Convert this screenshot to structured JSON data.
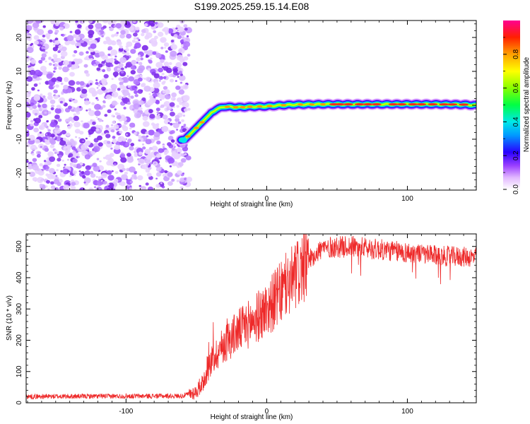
{
  "title": "S199.2025.259.15.14.E08",
  "chart_data": [
    {
      "type": "heatmap",
      "name": "spectrogram",
      "xlabel": "Height of straight line (km)",
      "ylabel": "Frequency (Hz)",
      "xlim": [
        -171,
        149
      ],
      "ylim": [
        -25,
        25
      ],
      "xticks": [
        -100,
        0,
        100
      ],
      "yticks": [
        -20,
        -10,
        0,
        10,
        20
      ],
      "noise_region_x_max": -58,
      "ridge": {
        "x": [
          -61,
          -58,
          -52,
          -46,
          -40,
          -36,
          -30,
          -20,
          -10,
          0,
          10,
          20,
          40,
          60,
          80,
          100,
          120,
          140,
          149
        ],
        "y": [
          -10.2,
          -10,
          -7.5,
          -5,
          -2.5,
          -1.2,
          -0.4,
          -0.6,
          -0.4,
          -0.3,
          0,
          0.2,
          0.3,
          0.3,
          0.3,
          0.3,
          0.3,
          0.2,
          0
        ]
      },
      "colorbar": {
        "label": "Normalized spectral amplitude",
        "ticks": [
          0.0,
          0.2,
          0.4,
          0.6,
          0.8
        ],
        "range": [
          0,
          1
        ]
      }
    },
    {
      "type": "line",
      "name": "snr",
      "xlabel": "Height of straight line (km)",
      "ylabel": "SNR (10 * v/v)",
      "xlim": [
        -171,
        149
      ],
      "ylim": [
        0,
        540
      ],
      "xticks": [
        -100,
        0,
        100
      ],
      "yticks": [
        0,
        100,
        200,
        300,
        400,
        500
      ],
      "series": [
        {
          "name": "SNR",
          "color": "#ee2a2a",
          "trend": {
            "x": [
              -171,
              -60,
              -50,
              -45,
              -40,
              -30,
              -20,
              -10,
              0,
              10,
              20,
              30,
              40,
              60,
              80,
              100,
              120,
              149
            ],
            "y": [
              20,
              22,
              35,
              70,
              130,
              190,
              230,
              260,
              300,
              350,
              400,
              460,
              495,
              500,
              490,
              480,
              470,
              465
            ]
          }
        }
      ]
    }
  ]
}
